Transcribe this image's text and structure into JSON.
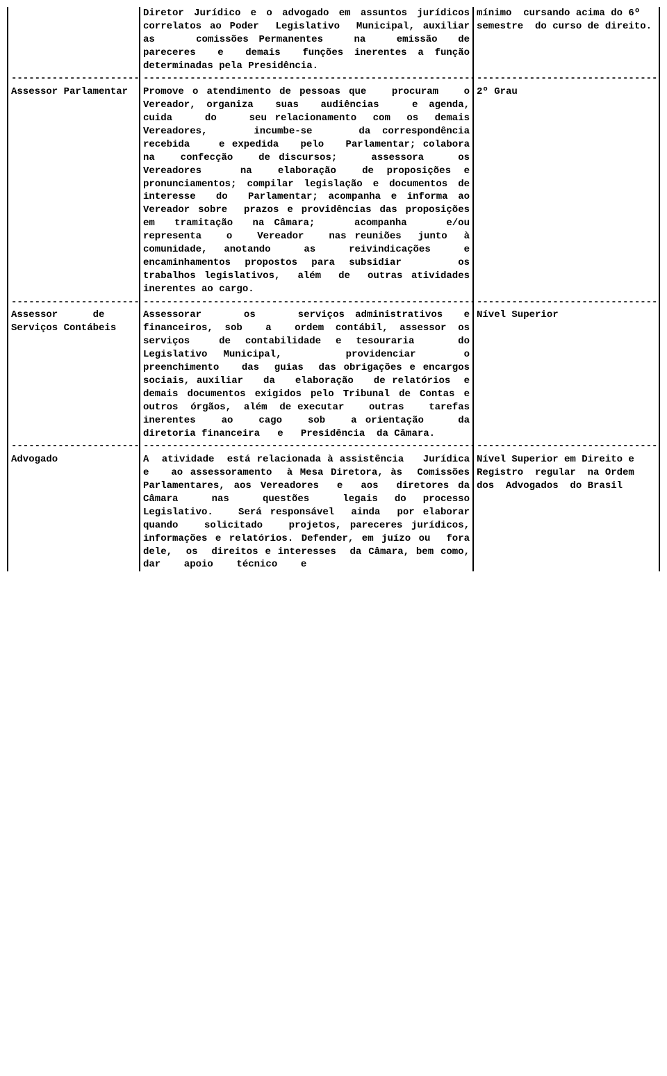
{
  "rows": [
    {
      "type": "content",
      "col1": "",
      "col2": "Diretor Jurídico e o advogado em assuntos jurídicos correlatos ao Poder  Legislativo  Municipal, auxiliar    as    comissões Permanentes   na   emissão  de pareceres  e  demais  funções inerentes a função determinadas pela Presidência.",
      "col3": "mínimo  cursando acima do 6º  semestre  do curso de direito."
    },
    {
      "type": "sep"
    },
    {
      "type": "content",
      "col1": "Assessor Parlamentar",
      "col2": "Promove o atendimento de pessoas que   procuram   o   Vereador, organiza  suas  audiências   e agenda,    cuida    do    seu relacionamento  com  os  demais Vereadores,    incumbe-se    da correspondência   recebida    e expedida   pelo   Parlamentar; colabora   na   confecção   de discursos;    assessora    os Vereadores   na  elaboração  de proposições e pronunciamentos; compilar legislação e documentos de  interesse  do  Parlamentar; acompanha e informa ao Vereador sobre  prazos e providências das proposições  em  tramitação  na Câmara;    acompanha    e/ou representa   o   Vereador   nas reuniões  junto  à  comunidade, anotando  as  reivindicações  e encaminhamentos propostos para subsidiar    os    trabalhos legislativos,  além  de  outras atividades inerentes ao cargo.",
      "col3": "2º Grau"
    },
    {
      "type": "sep"
    },
    {
      "type": "content",
      "col1": "Assessor      de Serviços Contábeis",
      "col2": "Assessorar    os    serviços administrativos  e financeiros, sob  a  ordem contábil, assessor os  serviços  de contabilidade e tesouraria   do   Legislativo Municipal,    providenciar   o preenchimento   das  guias  das obrigações e encargos sociais, auxiliar   da   elaboração   de relatórios  e  demais documentos exigidos pelo Tribunal de Contas e  outros  órgãos,  além  de executar    outras    tarefas inerentes   ao   cago   sob   a orientação    da    diretoria financeira   e   Presidência  da Câmara.",
      "col3": "Nível Superior"
    },
    {
      "type": "sep"
    },
    {
      "type": "content",
      "col1": "Advogado",
      "col2": "A  atividade  está relacionada à assistência   Jurídica   e   ao assessoramento  à Mesa Diretora, às  Comissões Parlamentares, aos Vereadores  e  aos  diretores da Câmara  nas  questões  legais do processo   Legislativo.   Será responsável  ainda  por elaborar quando   solicitado   projetos, pareceres jurídicos, informações e relatórios. Defender, em juízo ou  fora  dele,  os  direitos e interesses  da Câmara, bem como, dar    apoio    técnico    e",
      "col3": "Nível Superior em Direito e  Registro  regular  na Ordem  dos  Advogados  do Brasil"
    }
  ],
  "dashfill": "-----------------------------------------------------------------"
}
